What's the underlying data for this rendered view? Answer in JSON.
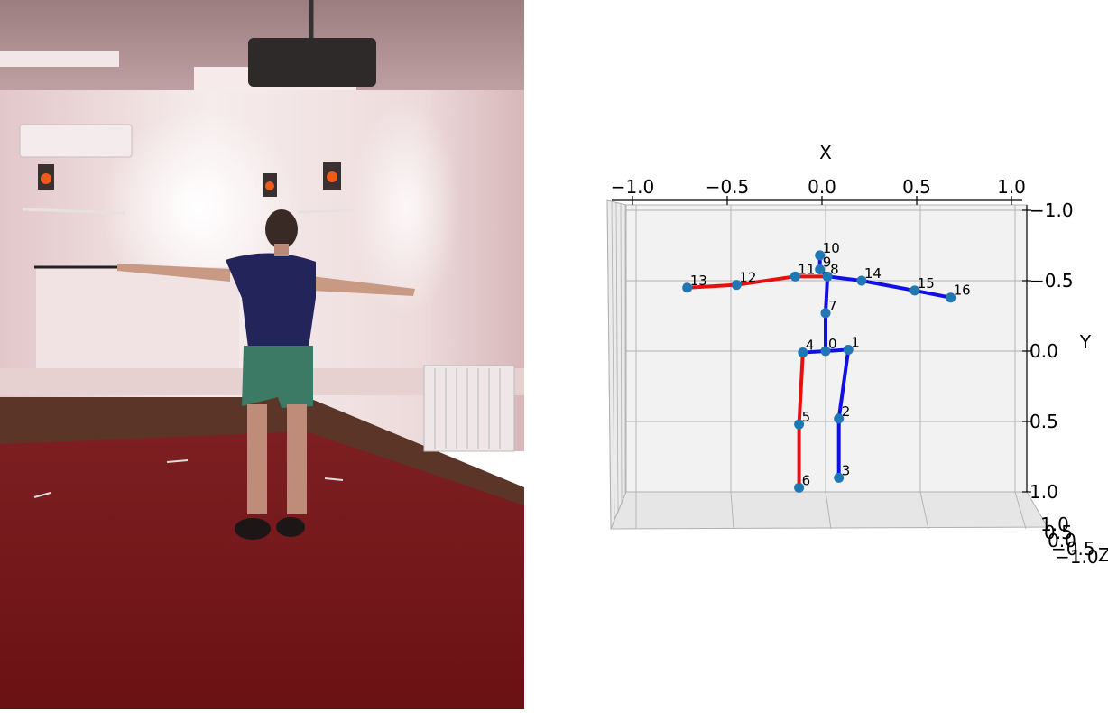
{
  "plot": {
    "x_axis_label": "X",
    "y_axis_label": "Y",
    "x_ticks": [
      "−1.0",
      "−0.5",
      "0.0",
      "0.5",
      "1.0"
    ],
    "y_ticks": [
      "−1.0",
      "−0.5",
      "0.0",
      "0.5",
      "1.0"
    ],
    "z_ticks": [
      "1.0",
      "0.5",
      "0.0",
      "−0.5",
      "−1.0"
    ],
    "z_tick_fragment": "Z",
    "colors": {
      "left_limbs": "#e8100f",
      "right_limbs": "#1010e6",
      "joint": "#1f77b4",
      "pane": "#f2f2f2",
      "grid": "#b0b0b0"
    },
    "joints": [
      {
        "id": "0",
        "x": 0.0,
        "y": 0.0
      },
      {
        "id": "1",
        "x": 0.12,
        "y": -0.01
      },
      {
        "id": "2",
        "x": 0.07,
        "y": 0.48
      },
      {
        "id": "3",
        "x": 0.07,
        "y": 0.9
      },
      {
        "id": "4",
        "x": -0.12,
        "y": 0.01
      },
      {
        "id": "5",
        "x": -0.14,
        "y": 0.52
      },
      {
        "id": "6",
        "x": -0.14,
        "y": 0.97
      },
      {
        "id": "7",
        "x": 0.0,
        "y": -0.27
      },
      {
        "id": "8",
        "x": 0.01,
        "y": -0.53
      },
      {
        "id": "9",
        "x": -0.03,
        "y": -0.58
      },
      {
        "id": "10",
        "x": -0.03,
        "y": -0.68
      },
      {
        "id": "11",
        "x": -0.16,
        "y": -0.53
      },
      {
        "id": "12",
        "x": -0.47,
        "y": -0.47
      },
      {
        "id": "13",
        "x": -0.73,
        "y": -0.45
      },
      {
        "id": "14",
        "x": 0.19,
        "y": -0.5
      },
      {
        "id": "15",
        "x": 0.47,
        "y": -0.43
      },
      {
        "id": "16",
        "x": 0.66,
        "y": -0.38
      }
    ],
    "bones": [
      {
        "a": "0",
        "b": "1",
        "side": "right"
      },
      {
        "a": "1",
        "b": "2",
        "side": "right"
      },
      {
        "a": "2",
        "b": "3",
        "side": "right"
      },
      {
        "a": "0",
        "b": "4",
        "side": "right"
      },
      {
        "a": "4",
        "b": "5",
        "side": "left"
      },
      {
        "a": "5",
        "b": "6",
        "side": "left"
      },
      {
        "a": "0",
        "b": "7",
        "side": "right"
      },
      {
        "a": "7",
        "b": "8",
        "side": "right"
      },
      {
        "a": "8",
        "b": "9",
        "side": "right"
      },
      {
        "a": "9",
        "b": "10",
        "side": "right"
      },
      {
        "a": "8",
        "b": "11",
        "side": "left"
      },
      {
        "a": "11",
        "b": "12",
        "side": "left"
      },
      {
        "a": "12",
        "b": "13",
        "side": "left"
      },
      {
        "a": "8",
        "b": "14",
        "side": "right"
      },
      {
        "a": "14",
        "b": "15",
        "side": "right"
      },
      {
        "a": "15",
        "b": "16",
        "side": "right"
      }
    ]
  }
}
